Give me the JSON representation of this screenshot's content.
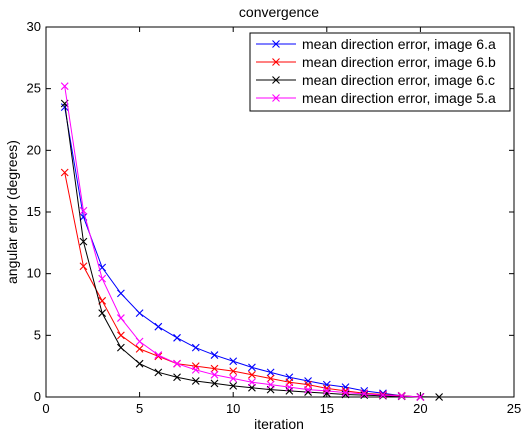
{
  "chart_data": {
    "type": "line",
    "title": "convergence",
    "xlabel": "iteration",
    "ylabel": "angular error (degrees)",
    "xlim": [
      0,
      25
    ],
    "ylim": [
      0,
      30
    ],
    "xticks": [
      0,
      5,
      10,
      15,
      20,
      25
    ],
    "yticks": [
      0,
      5,
      10,
      15,
      20,
      25,
      30
    ],
    "grid": false,
    "legend_position": "top-right",
    "marker": "x",
    "series": [
      {
        "name": "mean direction error, image 6.a",
        "color": "#0000ff",
        "x": [
          1,
          2,
          3,
          4,
          5,
          6,
          7,
          8,
          9,
          10,
          11,
          12,
          13,
          14,
          15,
          16,
          17,
          18,
          19,
          20
        ],
        "y": [
          23.5,
          14.6,
          10.5,
          8.4,
          6.8,
          5.7,
          4.8,
          4.0,
          3.4,
          2.9,
          2.4,
          2.0,
          1.6,
          1.3,
          1.0,
          0.8,
          0.5,
          0.3,
          0.1,
          0.0
        ]
      },
      {
        "name": "mean direction error, image 6.b",
        "color": "#ff0000",
        "x": [
          1,
          2,
          3,
          4,
          5,
          6,
          7,
          8,
          9,
          10,
          11,
          12,
          13,
          14,
          15,
          16,
          17,
          18,
          19,
          20
        ],
        "y": [
          18.2,
          10.6,
          7.8,
          5.0,
          3.9,
          3.3,
          2.7,
          2.5,
          2.3,
          2.1,
          1.8,
          1.5,
          1.2,
          1.0,
          0.7,
          0.5,
          0.3,
          0.2,
          0.1,
          0.0
        ]
      },
      {
        "name": "mean direction error, image 6.c",
        "color": "#000000",
        "x": [
          1,
          2,
          3,
          4,
          5,
          6,
          7,
          8,
          9,
          10,
          11,
          12,
          13,
          14,
          15,
          16,
          17,
          18,
          19,
          20,
          21
        ],
        "y": [
          23.8,
          12.6,
          6.8,
          4.0,
          2.7,
          2.0,
          1.6,
          1.3,
          1.1,
          0.9,
          0.75,
          0.6,
          0.5,
          0.4,
          0.3,
          0.2,
          0.15,
          0.1,
          0.05,
          0.02,
          0.0
        ]
      },
      {
        "name": "mean direction error, image 5.a",
        "color": "#ff00ff",
        "x": [
          1,
          2,
          3,
          4,
          5,
          6,
          7,
          8,
          9,
          10,
          11,
          12,
          13,
          14,
          15,
          16,
          17,
          18,
          19,
          20
        ],
        "y": [
          25.2,
          15.1,
          9.6,
          6.4,
          4.5,
          3.4,
          2.7,
          2.2,
          1.8,
          1.5,
          1.2,
          1.0,
          0.8,
          0.6,
          0.5,
          0.35,
          0.25,
          0.15,
          0.08,
          0.0
        ]
      }
    ]
  }
}
